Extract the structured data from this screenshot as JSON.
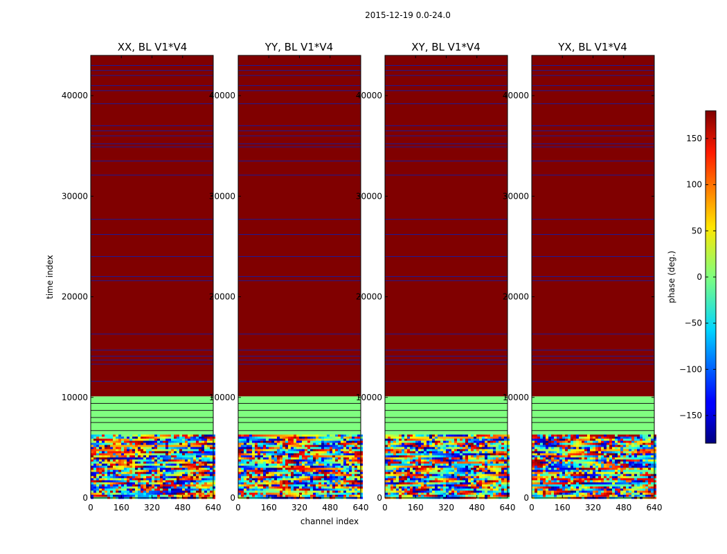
{
  "figure": {
    "suptitle": "2015-12-19 0.0-24.0"
  },
  "chart_data": [
    {
      "type": "heatmap",
      "title": "XX, BL V1*V4",
      "xlabel": "",
      "ylabel": "time index",
      "xlim": [
        0,
        640
      ],
      "ylim": [
        0,
        44000
      ],
      "x_ticks": [
        "0",
        "160",
        "320",
        "480",
        "640"
      ],
      "y_ticks": [
        "0",
        "10000",
        "20000",
        "30000",
        "40000"
      ],
      "noise_band": [
        0,
        6300
      ],
      "uniform_bands": [
        {
          "from": 6300,
          "to": 10100,
          "phase": 0
        },
        {
          "from": 10100,
          "to": 44000,
          "phase": 180
        }
      ],
      "separator_rows": [
        43000,
        42500,
        42000,
        41000,
        40500,
        39200,
        37000,
        36500,
        36000,
        35200,
        34900,
        33500,
        32100,
        27700,
        26200,
        24000,
        22000,
        21600,
        16300,
        14700,
        14100,
        13700,
        13300,
        11600,
        9400,
        8700,
        8000,
        7500,
        6700
      ]
    },
    {
      "type": "heatmap",
      "title": "YY, BL V1*V4",
      "xlabel": "channel index",
      "ylabel": "",
      "xlim": [
        0,
        640
      ],
      "ylim": [
        0,
        44000
      ],
      "x_ticks": [
        "0",
        "160",
        "320",
        "480",
        "640"
      ],
      "y_ticks": [
        "0",
        "10000",
        "20000",
        "30000",
        "40000"
      ],
      "noise_band": [
        0,
        6300
      ],
      "uniform_bands": [
        {
          "from": 6300,
          "to": 10100,
          "phase": 0
        },
        {
          "from": 10100,
          "to": 44000,
          "phase": 180
        }
      ],
      "separator_rows": [
        43000,
        42500,
        42000,
        41000,
        40500,
        39200,
        37000,
        36500,
        36000,
        35200,
        34900,
        33500,
        32100,
        27700,
        26200,
        24000,
        22000,
        21600,
        16300,
        14700,
        14100,
        13700,
        13300,
        11600,
        9400,
        8700,
        8000,
        7500,
        6700
      ]
    },
    {
      "type": "heatmap",
      "title": "XY, BL V1*V4",
      "xlabel": "",
      "ylabel": "",
      "xlim": [
        0,
        640
      ],
      "ylim": [
        0,
        44000
      ],
      "x_ticks": [
        "0",
        "160",
        "320",
        "480",
        "640"
      ],
      "y_ticks": [
        "0",
        "10000",
        "20000",
        "30000",
        "40000"
      ],
      "noise_band": [
        0,
        6300
      ],
      "uniform_bands": [
        {
          "from": 6300,
          "to": 10100,
          "phase": 0
        },
        {
          "from": 10100,
          "to": 44000,
          "phase": 180
        }
      ],
      "separator_rows": [
        43000,
        42500,
        42000,
        41000,
        40500,
        39200,
        37000,
        36500,
        36000,
        35200,
        34900,
        33500,
        32100,
        27700,
        26200,
        24000,
        22000,
        21600,
        16300,
        14700,
        14100,
        13700,
        13300,
        11600,
        9400,
        8700,
        8000,
        7500,
        6700
      ]
    },
    {
      "type": "heatmap",
      "title": "YX, BL V1*V4",
      "xlabel": "",
      "ylabel": "",
      "xlim": [
        0,
        640
      ],
      "ylim": [
        0,
        44000
      ],
      "x_ticks": [
        "0",
        "160",
        "320",
        "480",
        "640"
      ],
      "y_ticks": [
        "0",
        "10000",
        "20000",
        "30000",
        "40000"
      ],
      "noise_band": [
        0,
        6300
      ],
      "uniform_bands": [
        {
          "from": 6300,
          "to": 10100,
          "phase": 0
        },
        {
          "from": 10100,
          "to": 44000,
          "phase": 180
        }
      ],
      "separator_rows": [
        43000,
        42500,
        42000,
        41000,
        40500,
        39200,
        37000,
        36500,
        36000,
        35200,
        34900,
        33500,
        32100,
        27700,
        26200,
        24000,
        22000,
        21600,
        16300,
        14700,
        14100,
        13700,
        13300,
        11600,
        9400,
        8700,
        8000,
        7500,
        6700
      ]
    }
  ],
  "colorbar": {
    "label": "phase (deg.)",
    "range": [
      -180,
      180
    ],
    "ticks": [
      "150",
      "100",
      "50",
      "0",
      "−50",
      "−100",
      "−150"
    ],
    "tick_values": [
      150,
      100,
      50,
      0,
      -50,
      -100,
      -150
    ],
    "colormap": "jet"
  }
}
